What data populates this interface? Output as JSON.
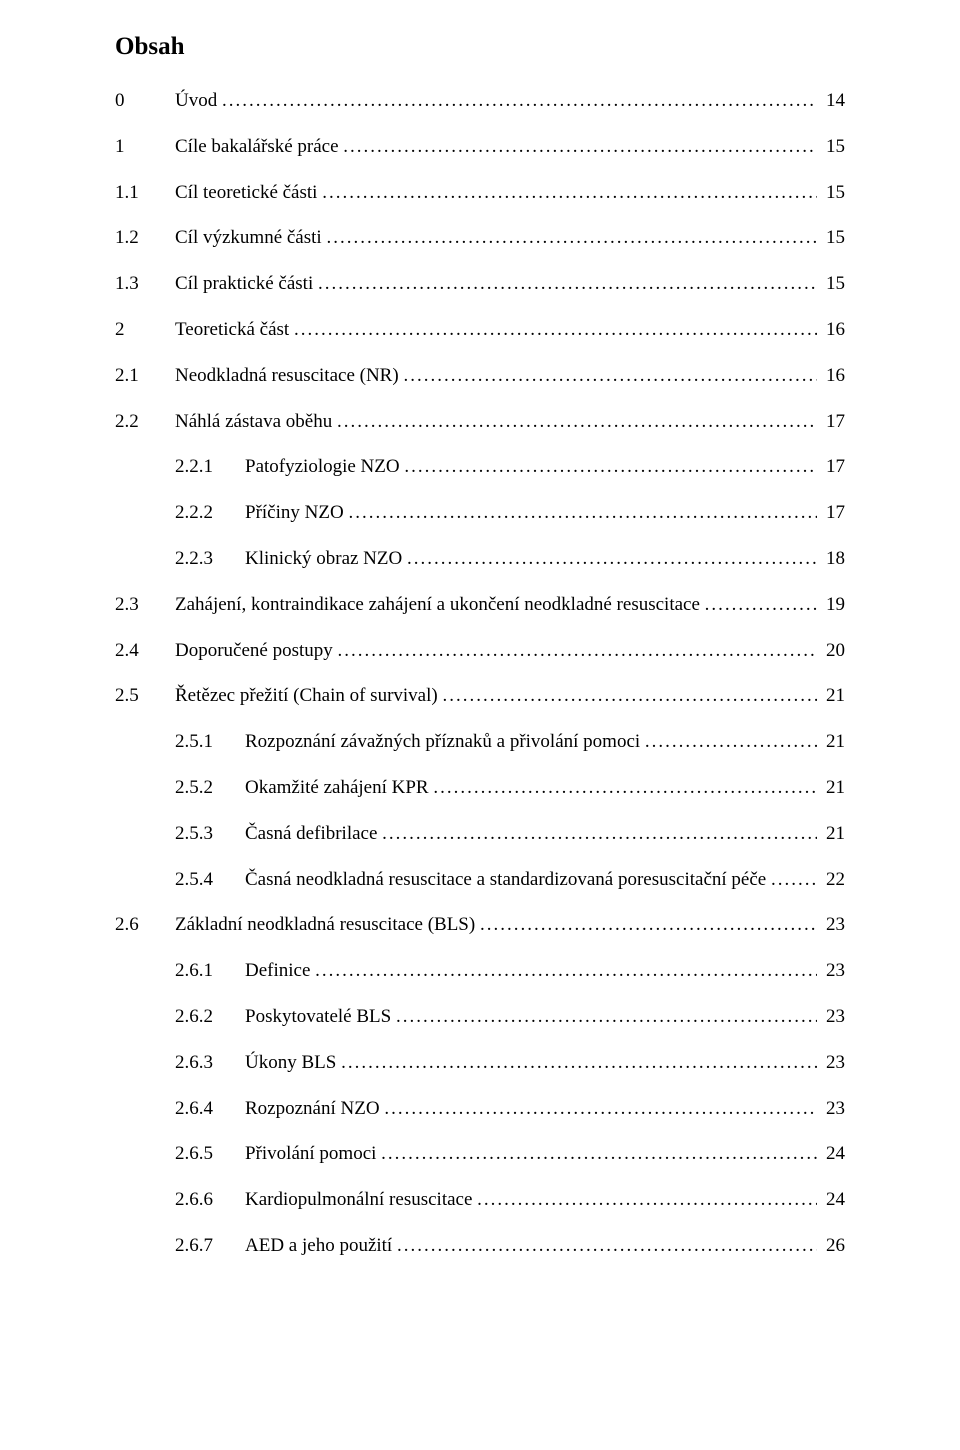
{
  "title": "Obsah",
  "entries": [
    {
      "indent": "indent-0",
      "num": "0",
      "text": "Úvod",
      "page": "14"
    },
    {
      "indent": "indent-0",
      "num": "1",
      "text": "Cíle bakalářské práce",
      "page": "15"
    },
    {
      "indent": "indent-1",
      "num": "1.1",
      "text": "Cíl teoretické části",
      "page": "15"
    },
    {
      "indent": "indent-1",
      "num": "1.2",
      "text": "Cíl výzkumné části",
      "page": "15"
    },
    {
      "indent": "indent-1",
      "num": "1.3",
      "text": "Cíl praktické části",
      "page": "15"
    },
    {
      "indent": "indent-0",
      "num": "2",
      "text": "Teoretická část",
      "page": "16"
    },
    {
      "indent": "indent-1",
      "num": "2.1",
      "text": "Neodkladná resuscitace (NR)",
      "page": "16"
    },
    {
      "indent": "indent-1",
      "num": "2.2",
      "text": "Náhlá zástava oběhu",
      "page": "17"
    },
    {
      "indent": "indent-2",
      "num": "2.2.1",
      "text": "Patofyziologie NZO",
      "page": "17"
    },
    {
      "indent": "indent-2",
      "num": "2.2.2",
      "text": "Příčiny NZO",
      "page": "17"
    },
    {
      "indent": "indent-2",
      "num": "2.2.3",
      "text": "Klinický obraz NZO",
      "page": "18"
    },
    {
      "indent": "indent-1",
      "num": "2.3",
      "text": "Zahájení, kontraindikace zahájení a ukončení neodkladné resuscitace",
      "page": "19"
    },
    {
      "indent": "indent-1",
      "num": "2.4",
      "text": "Doporučené postupy",
      "page": "20"
    },
    {
      "indent": "indent-1",
      "num": "2.5",
      "text": "Řetězec přežití (Chain of survival)",
      "page": "21"
    },
    {
      "indent": "indent-2",
      "num": "2.5.1",
      "text": "Rozpoznání závažných příznaků a přivolání pomoci",
      "page": "21"
    },
    {
      "indent": "indent-2",
      "num": "2.5.2",
      "text": "Okamžité zahájení KPR",
      "page": "21"
    },
    {
      "indent": "indent-2",
      "num": "2.5.3",
      "text": "Časná defibrilace",
      "page": "21"
    },
    {
      "indent": "indent-2",
      "num": "2.5.4",
      "text": "Časná neodkladná resuscitace a standardizovaná poresuscitační péče",
      "page": "22"
    },
    {
      "indent": "indent-1",
      "num": "2.6",
      "text": "Základní neodkladná resuscitace (BLS)",
      "page": "23"
    },
    {
      "indent": "indent-2",
      "num": "2.6.1",
      "text": "Definice",
      "page": "23"
    },
    {
      "indent": "indent-2",
      "num": "2.6.2",
      "text": "Poskytovatelé BLS",
      "page": "23"
    },
    {
      "indent": "indent-2",
      "num": "2.6.3",
      "text": "Úkony BLS",
      "page": "23"
    },
    {
      "indent": "indent-2",
      "num": "2.6.4",
      "text": "Rozpoznání NZO",
      "page": "23"
    },
    {
      "indent": "indent-2",
      "num": "2.6.5",
      "text": "Přivolání pomoci",
      "page": "24"
    },
    {
      "indent": "indent-2",
      "num": "2.6.6",
      "text": "Kardiopulmonální resuscitace",
      "page": "24"
    },
    {
      "indent": "indent-2",
      "num": "2.6.7",
      "text": "AED a jeho použití",
      "page": "26"
    }
  ]
}
